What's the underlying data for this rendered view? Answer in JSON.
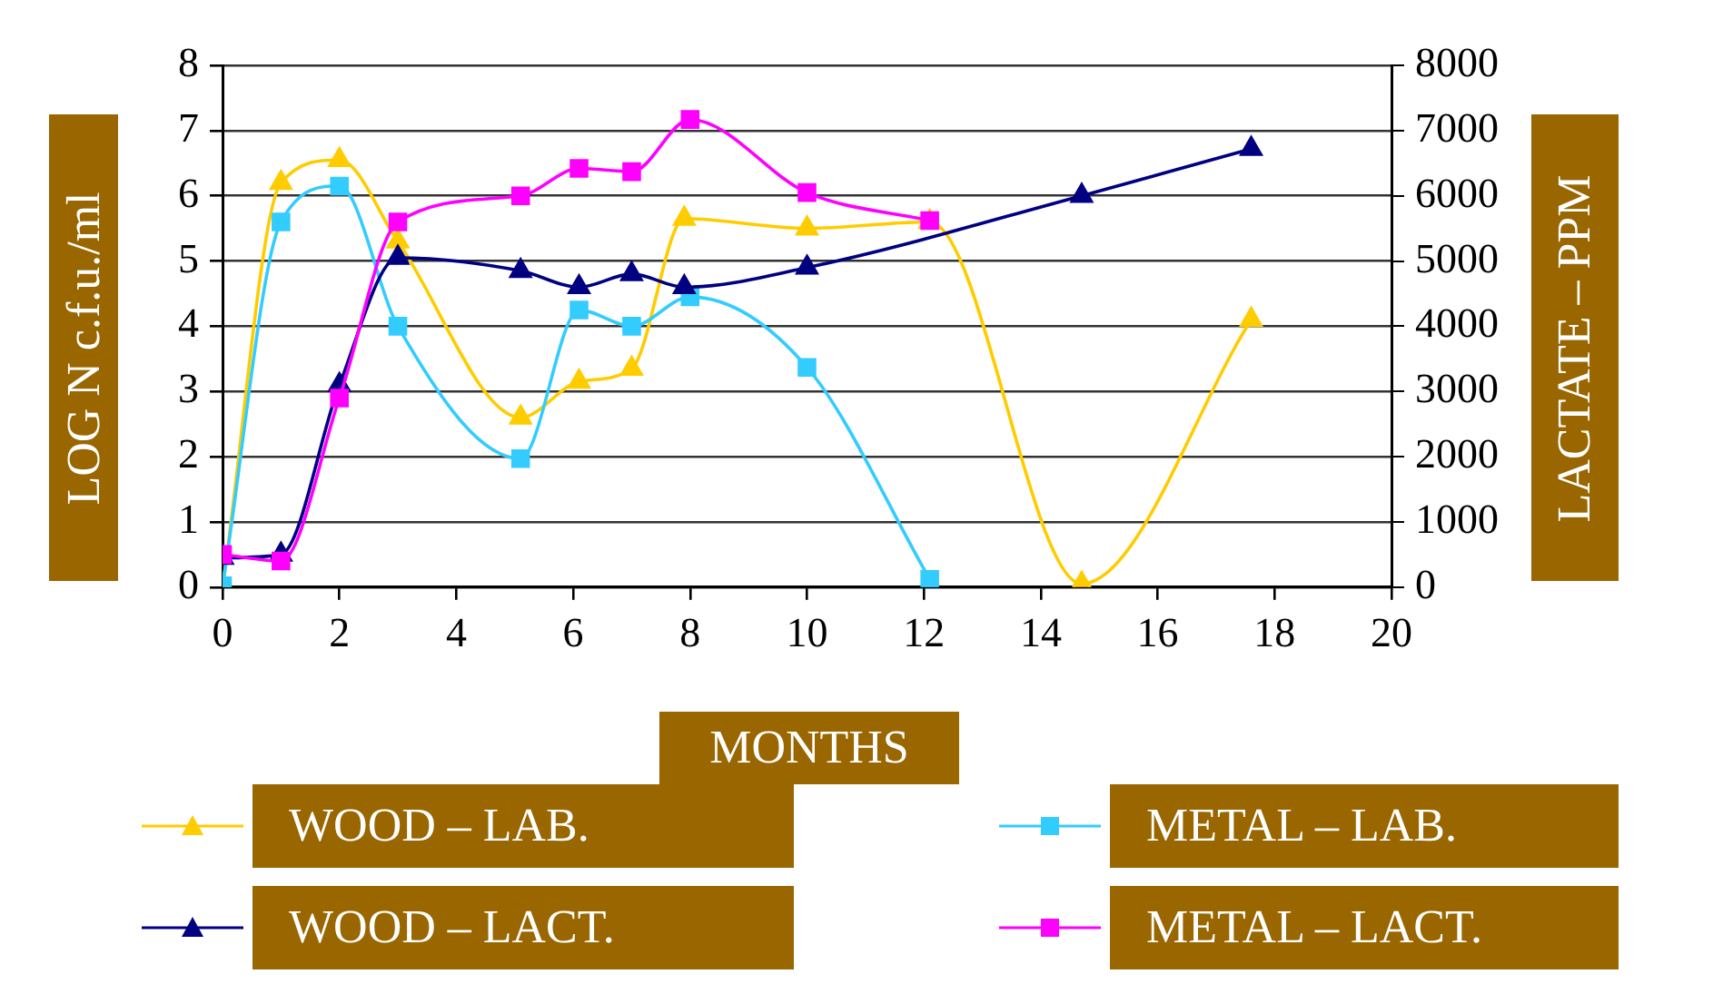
{
  "chart_data": {
    "type": "line",
    "xlabel": "MONTHS",
    "ylabel": "LOG N c.f.u./ml",
    "y2label": "LACTATE – PPM",
    "xlim": [
      0,
      20
    ],
    "xticks": [
      0,
      2,
      4,
      6,
      8,
      10,
      12,
      14,
      16,
      18,
      20
    ],
    "ylim": [
      0,
      8
    ],
    "yticks": [
      0,
      1,
      2,
      3,
      4,
      5,
      6,
      7,
      8
    ],
    "y2lim": [
      0,
      8000
    ],
    "y2ticks": [
      0,
      1000,
      2000,
      3000,
      4000,
      5000,
      6000,
      7000,
      8000
    ],
    "grid": "y",
    "legend": "bottom",
    "series": [
      {
        "name": "WOOD – LAB.",
        "color": "#ffcc00",
        "marker": "triangle",
        "x": [
          0,
          1,
          2,
          3,
          5.1,
          6.1,
          7,
          7.9,
          10,
          12.1,
          14.7,
          17.6
        ],
        "values": [
          0,
          6.2,
          6.55,
          5.3,
          2.6,
          3.15,
          3.35,
          5.65,
          5.5,
          5.6,
          0.05,
          4.1
        ]
      },
      {
        "name": "METAL – LAB.",
        "color": "#33ccff",
        "marker": "square",
        "x": [
          0,
          1,
          2,
          3,
          5.1,
          6.1,
          7,
          8,
          10,
          12.1
        ],
        "values": [
          0.02,
          5.6,
          6.15,
          4.0,
          1.97,
          4.25,
          4.0,
          4.45,
          3.37,
          0.12
        ]
      },
      {
        "name": "WOOD – LACT.",
        "color": "#000080",
        "marker": "triangle",
        "axis": "y2",
        "x": [
          0,
          1,
          2,
          3,
          5.1,
          6.1,
          7,
          7.9,
          10,
          14.7,
          17.6
        ],
        "values": [
          450,
          500,
          3100,
          5050,
          4850,
          4600,
          4800,
          4600,
          4900,
          6000,
          6720
        ]
      },
      {
        "name": "METAL – LACT.",
        "color": "#ff00ff",
        "marker": "square",
        "axis": "y2",
        "x": [
          0,
          1,
          2,
          3,
          5.1,
          6.1,
          7,
          8,
          10,
          12.1
        ],
        "values": [
          500,
          400,
          2900,
          5600,
          6000,
          6420,
          6370,
          7170,
          6050,
          5620
        ]
      }
    ]
  }
}
